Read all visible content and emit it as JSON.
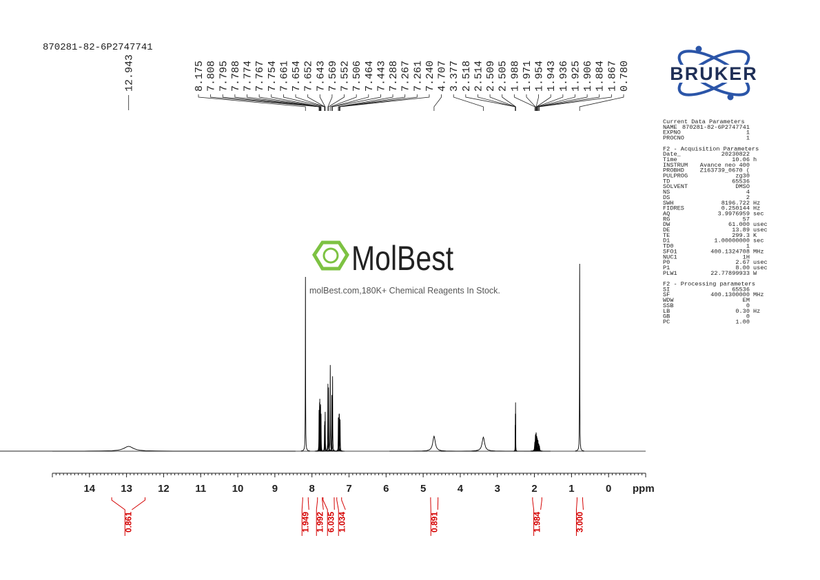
{
  "chart_data": {
    "type": "nmr",
    "sample": "870281-82-6P2747741",
    "xlabel": "ppm",
    "xlim": [
      15,
      -1
    ],
    "xticks": [
      14,
      13,
      12,
      11,
      10,
      9,
      8,
      7,
      6,
      5,
      4,
      3,
      2,
      1,
      0
    ],
    "ylim": [
      0,
      100
    ],
    "color": "#000000",
    "integral_color": "#d40000",
    "peaks": {
      "labels": [
        "12.943",
        "8.175",
        "7.808",
        "7.795",
        "7.788",
        "7.774",
        "7.767",
        "7.754",
        "7.661",
        "7.654",
        "7.652",
        "7.643",
        "7.569",
        "7.552",
        "7.506",
        "7.464",
        "7.443",
        "7.288",
        "7.267",
        "7.261",
        "7.240",
        "4.707",
        "3.377",
        "2.518",
        "2.514",
        "2.509",
        "2.505",
        "1.988",
        "1.971",
        "1.954",
        "1.943",
        "1.936",
        "1.925",
        "1.906",
        "1.884",
        "1.867",
        "0.780"
      ],
      "x": [
        12.943,
        8.175,
        7.808,
        7.795,
        7.788,
        7.774,
        7.767,
        7.754,
        7.661,
        7.654,
        7.652,
        7.643,
        7.569,
        7.552,
        7.506,
        7.464,
        7.443,
        7.288,
        7.267,
        7.261,
        7.24,
        4.707,
        3.377,
        2.518,
        2.514,
        2.509,
        2.505,
        1.988,
        1.971,
        1.954,
        1.943,
        1.936,
        1.925,
        1.906,
        1.884,
        1.867,
        0.78
      ],
      "values": [
        2.6,
        93,
        22,
        26,
        28,
        24,
        25,
        20,
        14,
        16,
        16,
        21,
        36,
        34,
        46,
        30,
        40,
        18,
        20,
        20,
        17,
        8,
        7.5,
        14,
        20,
        26,
        20,
        5,
        9,
        10,
        8,
        8,
        7,
        6,
        4,
        3,
        100
      ],
      "widths": [
        0.15,
        0.004,
        0.004,
        0.004,
        0.004,
        0.004,
        0.004,
        0.004,
        0.004,
        0.004,
        0.004,
        0.004,
        0.004,
        0.004,
        0.004,
        0.004,
        0.004,
        0.004,
        0.004,
        0.004,
        0.004,
        0.04,
        0.04,
        0.002,
        0.002,
        0.002,
        0.002,
        0.01,
        0.01,
        0.01,
        0.01,
        0.01,
        0.01,
        0.01,
        0.01,
        0.01,
        0.004
      ]
    },
    "integrals": {
      "values": [
        0.861,
        1.949,
        1.992,
        6.035,
        1.034,
        0.891,
        1.984,
        3.0
      ],
      "value_labels": [
        "0.861",
        "1.949",
        "1.992",
        "6.035",
        "1.034",
        "0.891",
        "1.984",
        "3.000"
      ],
      "ranges": [
        [
          13.4,
          12.5
        ],
        [
          8.25,
          8.1
        ],
        [
          7.85,
          7.72
        ],
        [
          7.7,
          7.4
        ],
        [
          7.33,
          7.2
        ],
        [
          4.8,
          4.6
        ],
        [
          2.05,
          1.8
        ],
        [
          0.85,
          0.7
        ]
      ]
    }
  },
  "logo": "BRUKER",
  "watermark": {
    "brand": "MolBest",
    "tagline": "molBest.com,180K+ Chemical Reagents In Stock."
  },
  "parameters": [
    {
      "title": "Current Data Parameters",
      "rows": [
        [
          "NAME",
          "870281-82-6P2747741"
        ],
        [
          "EXPNO",
          "1"
        ],
        [
          "PROCNO",
          "1"
        ]
      ]
    },
    {
      "title": "F2 - Acquisition Parameters",
      "rows": [
        [
          "Date_",
          "20230822"
        ],
        [
          "Time",
          "10.06",
          "h"
        ],
        [
          "INSTRUM",
          "Avance neo 400"
        ],
        [
          "PROBHD",
          "Z163739_0670 ("
        ],
        [
          "PULPROG",
          "zg30"
        ],
        [
          "TD",
          "65536"
        ],
        [
          "SOLVENT",
          "DMSO"
        ],
        [
          "NS",
          "4"
        ],
        [
          "DS",
          "2"
        ],
        [
          "SWH",
          "8196.722",
          "Hz"
        ],
        [
          "FIDRES",
          "0.250144",
          "Hz"
        ],
        [
          "AQ",
          "3.9976959",
          "sec"
        ],
        [
          "RG",
          "57"
        ],
        [
          "DW",
          "61.000",
          "usec"
        ],
        [
          "DE",
          "13.89",
          "usec"
        ],
        [
          "TE",
          "299.3",
          "K"
        ],
        [
          "D1",
          "1.00000000",
          "sec"
        ],
        [
          "TD0",
          "1"
        ],
        [
          "SFO1",
          "400.1324708",
          "MHz"
        ],
        [
          "NUC1",
          "1H"
        ],
        [
          "P0",
          "2.67",
          "usec"
        ],
        [
          "P1",
          "8.00",
          "usec"
        ],
        [
          "PLW1",
          "22.77899933",
          "W"
        ]
      ]
    },
    {
      "title": "F2 - Processing parameters",
      "rows": [
        [
          "SI",
          "65536"
        ],
        [
          "SF",
          "400.1300000",
          "MHz"
        ],
        [
          "WDW",
          "EM"
        ],
        [
          "SSB",
          "0"
        ],
        [
          "LB",
          "0.30",
          "Hz"
        ],
        [
          "GB",
          "0"
        ],
        [
          "PC",
          "1.00"
        ]
      ]
    }
  ]
}
